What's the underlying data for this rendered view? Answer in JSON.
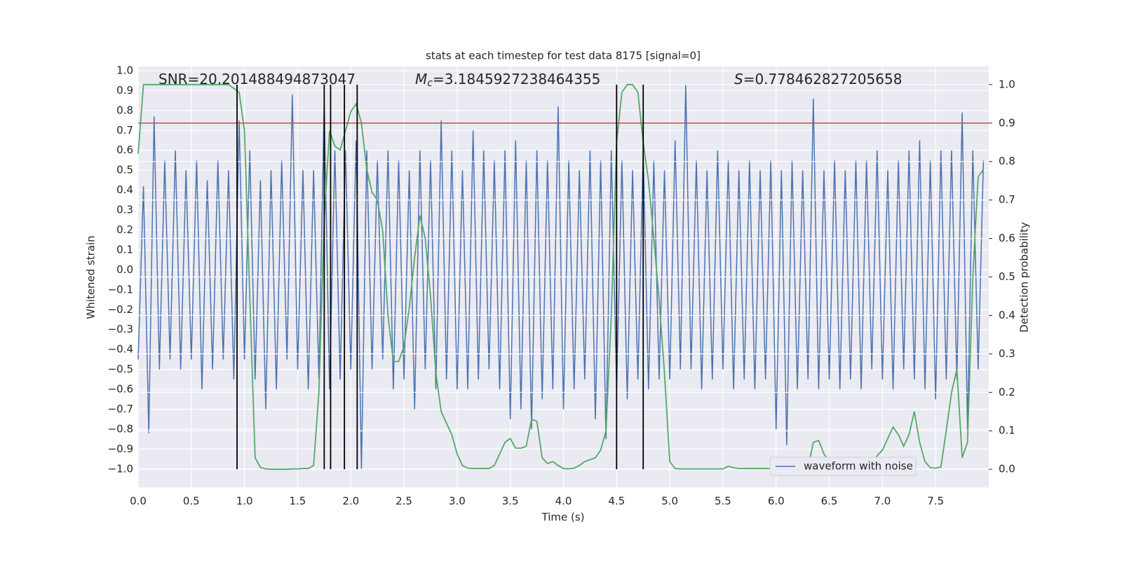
{
  "chart_data": {
    "type": "line",
    "title": "stats at each timestep for test data 8175 [signal=0]",
    "xlabel": "Time (s)",
    "ylabel": "Whitened strain",
    "y2label": "Detection probability",
    "annotations": [
      {
        "parts": [
          "SNR=20.201488494873047"
        ]
      },
      {
        "parts": [
          "M",
          "c",
          "=3.1845927238464355"
        ]
      },
      {
        "parts": [
          "S",
          "=0.778462827205658"
        ]
      }
    ],
    "x": [
      0,
      0.05,
      0.1,
      0.15,
      0.2,
      0.25,
      0.3,
      0.35,
      0.4,
      0.45,
      0.5,
      0.55,
      0.6,
      0.65,
      0.7,
      0.75,
      0.8,
      0.85,
      0.9,
      0.95,
      1.0,
      1.05,
      1.1,
      1.15,
      1.2,
      1.25,
      1.3,
      1.35,
      1.4,
      1.45,
      1.5,
      1.55,
      1.6,
      1.65,
      1.7,
      1.75,
      1.8,
      1.85,
      1.9,
      1.95,
      2.0,
      2.05,
      2.1,
      2.15,
      2.2,
      2.25,
      2.3,
      2.35,
      2.4,
      2.45,
      2.5,
      2.55,
      2.6,
      2.65,
      2.7,
      2.75,
      2.8,
      2.85,
      2.9,
      2.95,
      3.0,
      3.05,
      3.1,
      3.15,
      3.2,
      3.25,
      3.3,
      3.35,
      3.4,
      3.45,
      3.5,
      3.55,
      3.6,
      3.65,
      3.7,
      3.75,
      3.8,
      3.85,
      3.9,
      3.95,
      4.0,
      4.05,
      4.1,
      4.15,
      4.2,
      4.25,
      4.3,
      4.35,
      4.4,
      4.45,
      4.5,
      4.55,
      4.6,
      4.65,
      4.7,
      4.75,
      4.8,
      4.85,
      4.9,
      4.95,
      5.0,
      5.05,
      5.1,
      5.15,
      5.2,
      5.25,
      5.3,
      5.35,
      5.4,
      5.45,
      5.5,
      5.55,
      5.6,
      5.65,
      5.7,
      5.75,
      5.8,
      5.85,
      5.9,
      5.95,
      6.0,
      6.05,
      6.1,
      6.15,
      6.2,
      6.25,
      6.3,
      6.35,
      6.4,
      6.45,
      6.5,
      6.55,
      6.6,
      6.65,
      6.7,
      6.75,
      6.8,
      6.85,
      6.9,
      6.95,
      7.0,
      7.05,
      7.1,
      7.15,
      7.2,
      7.25,
      7.3,
      7.35,
      7.4,
      7.45,
      7.5,
      7.55,
      7.6,
      7.65,
      7.7,
      7.75,
      7.8,
      7.85,
      7.9,
      7.95
    ],
    "series": [
      {
        "name": "waveform with noise",
        "color": "#4c72b0",
        "values": [
          -0.45,
          0.42,
          -0.82,
          0.77,
          -0.5,
          0.55,
          -0.45,
          0.6,
          -0.5,
          0.5,
          -0.45,
          0.55,
          -0.6,
          0.45,
          -0.5,
          0.55,
          -0.45,
          0.5,
          -0.55,
          0.75,
          -0.45,
          0.6,
          -0.55,
          0.45,
          -0.7,
          0.5,
          -0.6,
          0.55,
          -0.45,
          0.88,
          -0.5,
          0.5,
          -0.6,
          0.5,
          -0.55,
          0.84,
          -0.6,
          0.6,
          -0.55,
          0.6,
          -0.5,
          0.65,
          -1.0,
          0.6,
          -0.5,
          0.55,
          -0.45,
          0.6,
          -0.6,
          0.55,
          -0.55,
          0.5,
          -0.7,
          0.6,
          -0.5,
          0.55,
          -0.6,
          0.75,
          -0.55,
          0.6,
          -0.6,
          0.5,
          -0.6,
          0.7,
          -0.55,
          0.6,
          -0.5,
          0.55,
          -0.6,
          0.6,
          -0.75,
          0.65,
          -0.7,
          0.55,
          -0.8,
          0.6,
          -0.65,
          0.55,
          -0.6,
          0.82,
          -0.7,
          0.55,
          -0.6,
          0.5,
          -0.55,
          0.6,
          -0.75,
          0.55,
          -0.85,
          0.6,
          -0.6,
          0.55,
          -0.65,
          0.5,
          -0.55,
          0.6,
          -0.6,
          0.55,
          -0.55,
          0.5,
          -0.55,
          0.65,
          -0.5,
          0.93,
          -0.5,
          0.55,
          -0.6,
          0.5,
          -0.55,
          0.6,
          -0.5,
          0.55,
          -0.6,
          0.5,
          -0.55,
          0.55,
          -0.6,
          0.5,
          -0.55,
          0.55,
          -0.8,
          0.5,
          -0.88,
          0.55,
          -0.6,
          0.5,
          -0.55,
          0.86,
          -0.6,
          0.5,
          -0.55,
          0.55,
          -0.6,
          0.5,
          -0.55,
          0.55,
          -0.6,
          0.55,
          -0.5,
          0.6,
          -0.55,
          0.5,
          -0.6,
          0.55,
          -0.5,
          0.6,
          -0.55,
          0.65,
          -0.6,
          0.55,
          -0.65,
          0.6,
          -0.55,
          0.6,
          -0.55,
          0.79,
          -0.8,
          0.6,
          -0.5,
          0.55
        ]
      },
      {
        "color": "#55a868",
        "axis": "y2",
        "values": [
          0.82,
          1.0,
          1.0,
          1.0,
          1.0,
          1.0,
          1.0,
          1.0,
          1.0,
          1.0,
          1.0,
          1.0,
          1.0,
          1.0,
          1.0,
          1.0,
          1.0,
          1.0,
          0.99,
          0.98,
          0.88,
          0.45,
          0.03,
          0.005,
          0.001,
          0.0,
          0.0,
          0.0,
          0.0,
          0.001,
          0.001,
          0.002,
          0.002,
          0.01,
          0.2,
          0.65,
          0.88,
          0.84,
          0.83,
          0.88,
          0.93,
          0.95,
          0.9,
          0.78,
          0.72,
          0.7,
          0.62,
          0.4,
          0.28,
          0.28,
          0.32,
          0.42,
          0.55,
          0.66,
          0.6,
          0.45,
          0.25,
          0.15,
          0.12,
          0.09,
          0.04,
          0.01,
          0.003,
          0.002,
          0.002,
          0.002,
          0.002,
          0.01,
          0.04,
          0.07,
          0.08,
          0.055,
          0.055,
          0.06,
          0.13,
          0.125,
          0.03,
          0.015,
          0.02,
          0.01,
          0.002,
          0.001,
          0.003,
          0.01,
          0.02,
          0.025,
          0.03,
          0.05,
          0.1,
          0.4,
          0.85,
          0.98,
          1.0,
          1.0,
          0.98,
          0.85,
          0.75,
          0.6,
          0.44,
          0.25,
          0.02,
          0.002,
          0.001,
          0.001,
          0.001,
          0.001,
          0.001,
          0.001,
          0.001,
          0.001,
          0.001,
          0.008,
          0.004,
          0.002,
          0.002,
          0.002,
          0.002,
          0.002,
          0.002,
          0.002,
          0.002,
          0.002,
          0.002,
          0.002,
          0.002,
          0.002,
          0.005,
          0.07,
          0.075,
          0.04,
          0.02,
          0.022,
          0.03,
          0.02,
          0.008,
          0.005,
          0.005,
          0.01,
          0.02,
          0.035,
          0.05,
          0.08,
          0.11,
          0.09,
          0.06,
          0.09,
          0.15,
          0.07,
          0.02,
          0.004,
          0.003,
          0.006,
          0.1,
          0.2,
          0.26,
          0.03,
          0.07,
          0.5,
          0.76,
          0.78
        ]
      }
    ],
    "threshold": {
      "value": 0.9,
      "color": "#c44e52",
      "axis": "y2"
    },
    "vlines": {
      "x": [
        0.93,
        1.75,
        1.81,
        1.94,
        2.06,
        4.5,
        4.75
      ],
      "y2": [
        0,
        1.0
      ],
      "color": "#000000"
    },
    "xlim": [
      0,
      8.0
    ],
    "xticks": [
      {
        "value": 0,
        "label": "0.0"
      },
      0.5,
      {
        "value": 1,
        "label": "1.0"
      },
      1.5,
      {
        "value": 2,
        "label": "2.0"
      },
      2.5,
      {
        "value": 3,
        "label": "3.0"
      },
      3.5,
      {
        "value": 4,
        "label": "4.0"
      },
      4.5,
      {
        "value": 5,
        "label": "5.0"
      },
      5.5,
      {
        "value": 6,
        "label": "6.0"
      },
      6.5,
      {
        "value": 7,
        "label": "7.0"
      },
      7.5
    ],
    "ylim": [
      -1.092,
      1.021
    ],
    "yticks": [
      {
        "value": -1,
        "label": "−1.0"
      },
      {
        "value": -0.9,
        "label": "−0.9"
      },
      {
        "value": -0.8,
        "label": "−0.8"
      },
      {
        "value": -0.7,
        "label": "−0.7"
      },
      {
        "value": -0.6,
        "label": "−0.6"
      },
      {
        "value": -0.5,
        "label": "−0.5"
      },
      {
        "value": -0.4,
        "label": "−0.4"
      },
      {
        "value": -0.3,
        "label": "−0.3"
      },
      {
        "value": -0.2,
        "label": "−0.2"
      },
      {
        "value": -0.1,
        "label": "−0.1"
      },
      {
        "value": 0,
        "label": "0.0"
      },
      0.1,
      0.2,
      0.3,
      0.4,
      0.5,
      0.6,
      0.7,
      0.8,
      0.9,
      {
        "value": 1,
        "label": "1.0"
      }
    ],
    "y2lim": [
      -0.047,
      1.047
    ],
    "y2ticks": [
      {
        "value": 0,
        "label": "0.0"
      },
      0.1,
      0.2,
      0.3,
      0.4,
      0.5,
      0.6,
      0.7,
      0.8,
      0.9,
      {
        "value": 1,
        "label": "1.0"
      }
    ],
    "grid": true,
    "legend": "lower right",
    "background": "#eaeaf2"
  }
}
